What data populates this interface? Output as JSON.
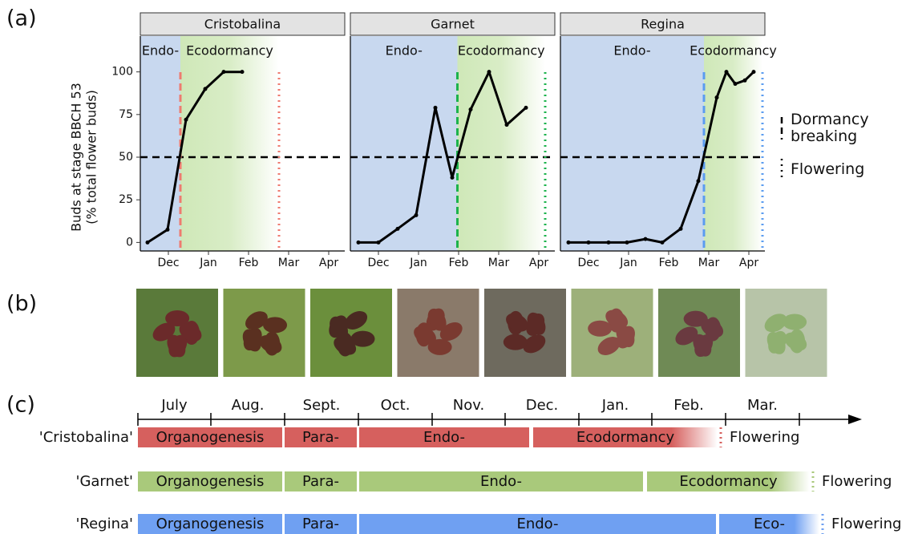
{
  "panel_labels": [
    "(a)",
    "(b)",
    "(c)"
  ],
  "ylabel": [
    "Buds at stage BBCH 53",
    "(% total flower buds)"
  ],
  "legend": {
    "items": [
      {
        "label": "Dormancy breaking",
        "style": "dashed"
      },
      {
        "label": "Flowering",
        "style": "dotted"
      }
    ]
  },
  "chart_data": [
    {
      "type": "line",
      "title": "Cristobalina",
      "phase_labels": [
        "Endo-",
        "Ecodormancy"
      ],
      "color": "#000000",
      "accent_color": "#ee7b70",
      "x": [
        11.48,
        11.98,
        12.44,
        12.92,
        13.38,
        13.84
      ],
      "values": [
        0,
        7.5,
        72,
        90,
        100,
        100
      ],
      "dormancy_breaking": 12.3,
      "flowering": 14.76,
      "hline": 50,
      "xlim": [
        11.3,
        16.4
      ],
      "xticks": [
        {
          "value": 12,
          "label": "Dec"
        },
        {
          "value": 13,
          "label": "Jan"
        },
        {
          "value": 14,
          "label": "Feb"
        },
        {
          "value": 15,
          "label": "Mar"
        },
        {
          "value": 16,
          "label": "Apr"
        }
      ],
      "ylim": [
        -5,
        121
      ],
      "yticks": [
        0,
        25,
        50,
        75,
        100
      ]
    },
    {
      "type": "line",
      "title": "Garnet",
      "phase_labels": [
        "Endo-",
        "Ecodormancy"
      ],
      "color": "#000000",
      "accent_color": "#1db34c",
      "x": [
        11.5,
        12,
        12.48,
        12.94,
        13.42,
        13.84,
        14.3,
        14.76,
        15.2,
        15.68
      ],
      "values": [
        0,
        0,
        8,
        16,
        79,
        38,
        78,
        100,
        69,
        79
      ],
      "dormancy_breaking": 13.97,
      "flowering": 16.16,
      "hline": 50,
      "xlim": [
        11.3,
        16.4
      ],
      "xticks": [
        {
          "value": 12,
          "label": "Dec"
        },
        {
          "value": 13,
          "label": "Jan"
        },
        {
          "value": 14,
          "label": "Feb"
        },
        {
          "value": 15,
          "label": "Mar"
        },
        {
          "value": 16,
          "label": "Apr"
        }
      ],
      "ylim": [
        -5,
        121
      ]
    },
    {
      "type": "line",
      "title": "Regina",
      "phase_labels": [
        "Endo-",
        "Ecodormancy"
      ],
      "color": "#000000",
      "accent_color": "#5b9cf0",
      "x": [
        11.5,
        12,
        12.5,
        12.96,
        13.42,
        13.84,
        14.3,
        14.74,
        15.2,
        15.44,
        15.66,
        15.9,
        16.12
      ],
      "values": [
        0,
        0,
        0,
        0,
        2,
        0,
        8,
        36,
        85,
        100,
        93,
        95,
        100
      ],
      "dormancy_breaking": 14.88,
      "flowering": 16.34,
      "hline": 50,
      "xlim": [
        11.3,
        16.4
      ],
      "xticks": [
        {
          "value": 12,
          "label": "Dec"
        },
        {
          "value": 13,
          "label": "Jan"
        },
        {
          "value": 14,
          "label": "Feb"
        },
        {
          "value": 15,
          "label": "Mar"
        },
        {
          "value": 16,
          "label": "Apr"
        }
      ],
      "ylim": [
        -5,
        121
      ]
    }
  ],
  "timeline": {
    "months": [
      "July",
      "Aug.",
      "Sept.",
      "Oct.",
      "Nov.",
      "Dec.",
      "Jan.",
      "Feb.",
      "Mar."
    ],
    "rows": [
      {
        "name": "'Cristobalina'",
        "color": "#d6605e",
        "phases": [
          "Organogenesis",
          "Para-",
          "Endo-",
          "Ecodormancy"
        ],
        "end": "Flowering"
      },
      {
        "name": "'Garnet'",
        "color": "#a9c97b",
        "phases": [
          "Organogenesis",
          "Para-",
          "Endo-",
          "Ecodormancy"
        ],
        "end": "Flowering"
      },
      {
        "name": "'Regina'",
        "color": "#6fa0f2",
        "phases": [
          "Organogenesis",
          "Para-",
          "Endo-",
          "Eco-"
        ],
        "end": "Flowering"
      }
    ]
  }
}
